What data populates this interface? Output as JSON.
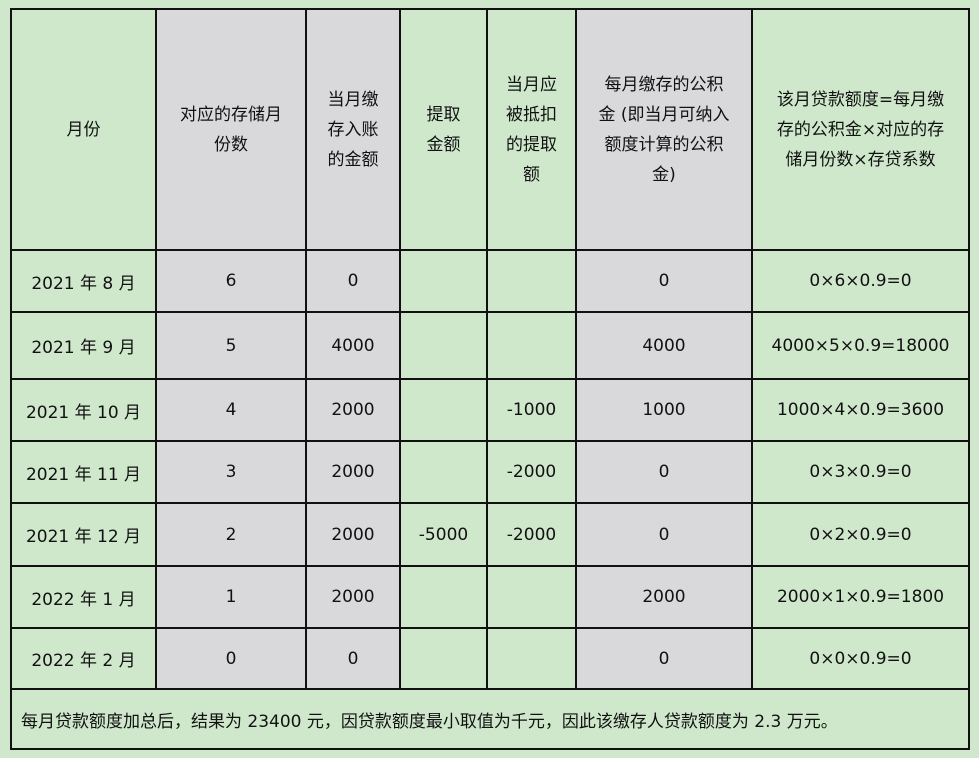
{
  "headers": [
    [
      "月份"
    ],
    [
      "对应的存储月",
      "份数"
    ],
    [
      "当月缴",
      "存入账",
      "的金额"
    ],
    [
      "提取",
      "金额"
    ],
    [
      "当月应",
      "被抵扣",
      "的提取",
      "额"
    ],
    [
      "每月缴存的公积",
      "金 (即当月可纳入",
      "额度计算的公积",
      "金)"
    ],
    [
      "该月贷款额度=每月缴",
      "存的公积金×对应的存",
      "储月份数×存贷系数"
    ]
  ],
  "rows": [
    [
      "2021 年 8 月",
      "6",
      "0",
      "",
      "",
      "0",
      "0×6×0.9=0"
    ],
    [
      "2021 年 9 月",
      "5",
      "4000",
      "",
      "",
      "4000",
      "4000×5×0.9=18000"
    ],
    [
      "2021 年 10 月",
      "4",
      "2000",
      "",
      "-1000",
      "1000",
      "1000×4×0.9=3600"
    ],
    [
      "2021 年 11 月",
      "3",
      "2000",
      "",
      "-2000",
      "0",
      "0×3×0.9=0"
    ],
    [
      "2021 年 12 月",
      "2",
      "2000",
      "-5000",
      "-2000",
      "0",
      "0×2×0.9=0"
    ],
    [
      "2022 年 1 月",
      "1",
      "2000",
      "",
      "",
      "2000",
      "2000×1×0.9=1800"
    ],
    [
      "2022 年 2 月",
      "0",
      "0",
      "",
      "",
      "0",
      "0×0×0.9=0"
    ]
  ],
  "footer": "每月贷款额度加总后，结果为 23400 元，因贷款额度最小取值为千元，因此该缴存人贷款额度为 2.3 万元。",
  "colors": {
    "background": "#cfe8cc",
    "shaded_column": "#d9d9dc",
    "border": "#111111"
  }
}
